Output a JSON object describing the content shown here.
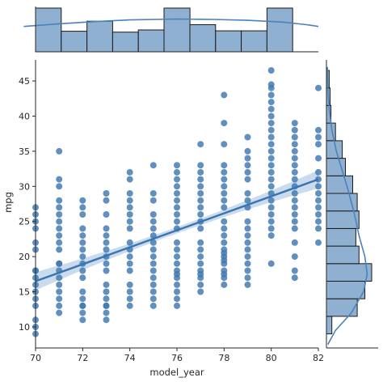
{
  "chart_data": {
    "type": "scatter",
    "xlabel": "model_year",
    "ylabel": "mpg",
    "xlim": [
      70,
      82
    ],
    "ylim": [
      7,
      48
    ],
    "x_ticks": [
      70,
      72,
      74,
      76,
      78,
      80,
      82
    ],
    "y_ticks": [
      10,
      15,
      20,
      25,
      30,
      35,
      40,
      45
    ],
    "colors": {
      "points": "#3f78b0",
      "regression_line": "#3a74ad",
      "confidence_band": "#bcd2e8",
      "hist_fill": "#8fb0d0",
      "hist_edge": "#1a1a1a",
      "kde": "#4a82bb",
      "axes": "#262626"
    },
    "regression": {
      "x": [
        70,
        82
      ],
      "y": [
        16.5,
        31.0
      ],
      "ci_half_width_ends": 1.3,
      "ci_half_width_center": 0.45
    },
    "points": [
      {
        "x": 70,
        "y": [
          9,
          10,
          11,
          13,
          14,
          15,
          16,
          17,
          18,
          18,
          21,
          22,
          24,
          25,
          26,
          27
        ]
      },
      {
        "x": 71,
        "y": [
          12,
          13,
          14,
          15,
          16,
          17,
          18,
          19,
          19,
          21,
          22,
          23,
          24,
          25,
          26,
          27,
          28,
          30,
          31,
          35
        ]
      },
      {
        "x": 72,
        "y": [
          11,
          12,
          13,
          13,
          14,
          15,
          17,
          18,
          19,
          20,
          21,
          22,
          23,
          24,
          26,
          27,
          28
        ]
      },
      {
        "x": 73,
        "y": [
          11,
          12,
          13,
          13,
          14,
          15,
          16,
          18,
          19,
          20,
          21,
          22,
          23,
          24,
          26,
          28,
          29
        ]
      },
      {
        "x": 74,
        "y": [
          13,
          14,
          15,
          16,
          18,
          19,
          20,
          21,
          22,
          24,
          25,
          26,
          27,
          28,
          29,
          31,
          32
        ]
      },
      {
        "x": 75,
        "y": [
          13,
          14,
          15,
          16,
          17,
          18,
          19,
          20,
          21,
          22,
          23,
          24,
          25,
          26,
          28,
          29,
          33
        ]
      },
      {
        "x": 76,
        "y": [
          13,
          14,
          15,
          16,
          17,
          17.5,
          18,
          19,
          20,
          21,
          22,
          24,
          25,
          26,
          27,
          28,
          29,
          30,
          31,
          32,
          33
        ]
      },
      {
        "x": 77,
        "y": [
          15,
          16,
          17,
          17.5,
          18,
          19,
          20,
          21,
          22,
          24,
          25,
          26,
          27,
          28,
          29,
          30,
          31,
          32,
          33,
          36
        ]
      },
      {
        "x": 78,
        "y": [
          16,
          17,
          17.5,
          18,
          19,
          19.5,
          20,
          20.5,
          21,
          22,
          23,
          24,
          25,
          27,
          28,
          29,
          30,
          31,
          32,
          33,
          36,
          39,
          43
        ]
      },
      {
        "x": 79,
        "y": [
          16,
          17,
          18,
          19,
          20,
          21,
          22,
          23,
          24,
          25,
          27,
          28,
          29,
          31,
          32,
          33,
          34,
          35,
          37
        ]
      },
      {
        "x": 80,
        "y": [
          19,
          23,
          24,
          25,
          26,
          27,
          28,
          29,
          30,
          31,
          32,
          33,
          34,
          35,
          36,
          37,
          38,
          39,
          40,
          41,
          42,
          43,
          44,
          44.5,
          46.5
        ]
      },
      {
        "x": 81,
        "y": [
          17,
          18,
          20,
          22,
          24,
          25,
          26,
          27,
          28,
          29,
          30,
          31,
          32,
          33,
          34,
          35,
          36,
          37,
          38,
          39
        ]
      },
      {
        "x": 82,
        "y": [
          22,
          24,
          25,
          26,
          27,
          28,
          29,
          30,
          31,
          32,
          34,
          36,
          37,
          38,
          44
        ]
      }
    ],
    "top_histogram": {
      "bin_edges": [
        70,
        71.09,
        72.18,
        73.27,
        74.36,
        75.45,
        76.55,
        77.64,
        78.73,
        79.82,
        80.91,
        82
      ],
      "heights": [
        1.0,
        0.47,
        0.7,
        0.45,
        0.5,
        1.0,
        0.62,
        0.48,
        0.48,
        1.0,
        0
      ],
      "kde": [
        [
          69.5,
          0.58
        ],
        [
          71,
          0.64
        ],
        [
          72.5,
          0.69
        ],
        [
          74,
          0.73
        ],
        [
          76,
          0.75
        ],
        [
          77.5,
          0.74
        ],
        [
          79,
          0.72
        ],
        [
          80.5,
          0.68
        ],
        [
          81.5,
          0.62
        ],
        [
          82,
          0.58
        ]
      ]
    },
    "right_histogram": {
      "bin_edges": [
        9,
        11.5,
        14,
        16.5,
        19,
        21.5,
        24,
        26.5,
        29,
        31.5,
        34,
        36.5,
        39,
        41.5,
        44,
        46.5
      ],
      "widths": [
        0.12,
        0.68,
        0.85,
        1.0,
        0.72,
        0.65,
        0.72,
        0.68,
        0.58,
        0.42,
        0.35,
        0.2,
        0.1,
        0.08,
        0.06
      ],
      "kde": [
        [
          7.5,
          0.03
        ],
        [
          9.5,
          0.2
        ],
        [
          12,
          0.55
        ],
        [
          15,
          0.82
        ],
        [
          17.5,
          0.9
        ],
        [
          20,
          0.85
        ],
        [
          23,
          0.72
        ],
        [
          26,
          0.62
        ],
        [
          29,
          0.5
        ],
        [
          32,
          0.36
        ],
        [
          35,
          0.22
        ],
        [
          38,
          0.12
        ],
        [
          41,
          0.06
        ],
        [
          44,
          0.03
        ],
        [
          47,
          0.02
        ]
      ]
    }
  }
}
